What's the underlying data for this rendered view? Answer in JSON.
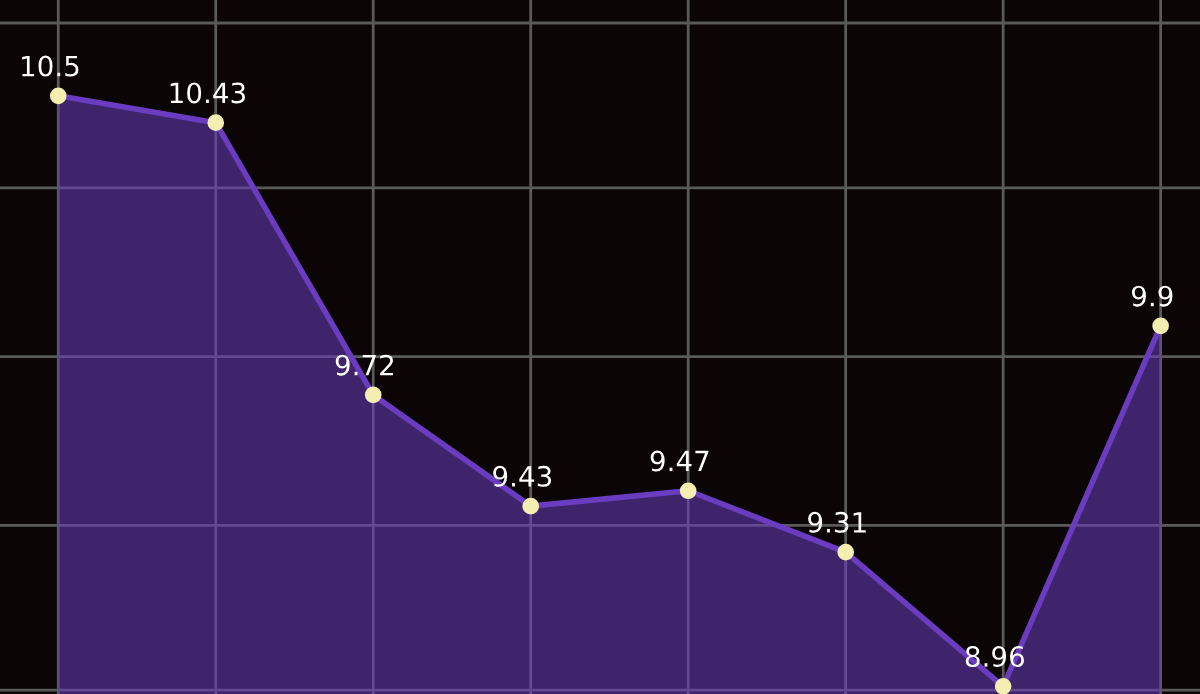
{
  "chart_data": {
    "type": "area",
    "categories": [
      null,
      null,
      null,
      null,
      null,
      null,
      null,
      null
    ],
    "series": [
      {
        "color": "#6a3cc0",
        "values": [
          10.5,
          10.43,
          9.72,
          9.43,
          9.47,
          9.31,
          8.96,
          9.9
        ]
      }
    ],
    "ylim": [
      8.94,
      10.75
    ],
    "yticks": [
      {
        "value": 8.95,
        "label": null
      },
      {
        "value": 9.38,
        "label": null
      },
      {
        "value": 9.82,
        "label": null
      },
      {
        "value": 10.26,
        "label": null
      },
      {
        "value": 10.69,
        "label": null
      }
    ],
    "data_labels": true,
    "grid": true,
    "marker": "circle"
  }
}
